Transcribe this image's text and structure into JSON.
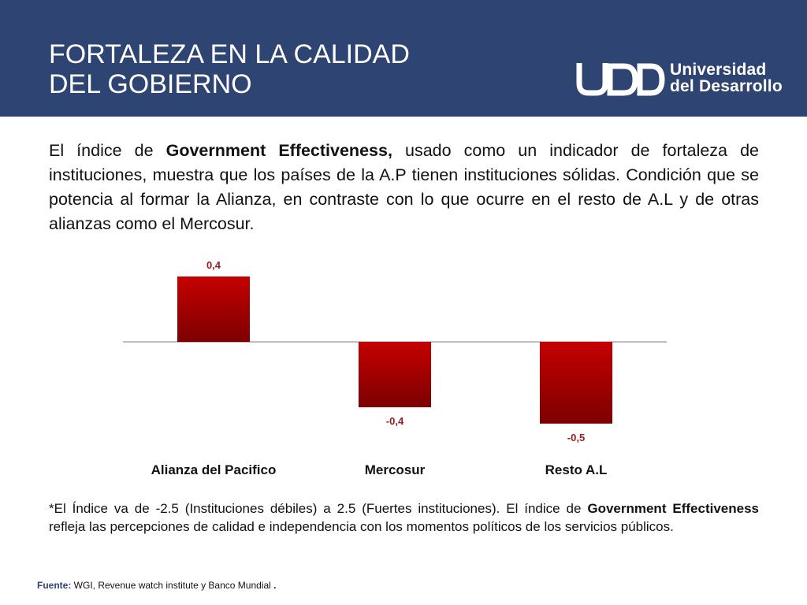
{
  "header": {
    "title_line1": "FORTALEZA EN LA CALIDAD",
    "title_line2": "DEL GOBIERNO",
    "logo_line1": "Universidad",
    "logo_line2": "del Desarrollo",
    "background_color": "#2e4472"
  },
  "intro": {
    "part1": "El índice de ",
    "bold": "Government Effectiveness,",
    "part2": " usado como un indicador de fortaleza de instituciones, muestra que los países de la A.P tienen instituciones sólidas. Condición que se potencia al formar la Alianza, en contraste con lo que ocurre en el resto de A.L y de otras alianzas como el Mercosur."
  },
  "chart_data": {
    "type": "bar",
    "categories": [
      "Alianza del Pacifico",
      "Mercosur",
      "Resto A.L"
    ],
    "values": [
      0.4,
      -0.4,
      -0.5
    ],
    "data_labels": [
      "0,4",
      "-0,4",
      "-0,5"
    ],
    "title": "",
    "xlabel": "",
    "ylabel": "",
    "bar_color": "#b00000",
    "label_color": "#9b1b1b"
  },
  "note": {
    "part1": "*El Índice va de -2.5 (Instituciones débiles) a 2.5 (Fuertes instituciones). El índice de ",
    "bold": "Government Effectiveness",
    "part2": " refleja las percepciones de calidad e independencia con los momentos políticos de los servicios públicos."
  },
  "source": {
    "label": "Fuente:",
    "text": " WGI, Revenue watch institute y Banco Mundial",
    "tail": " ."
  }
}
